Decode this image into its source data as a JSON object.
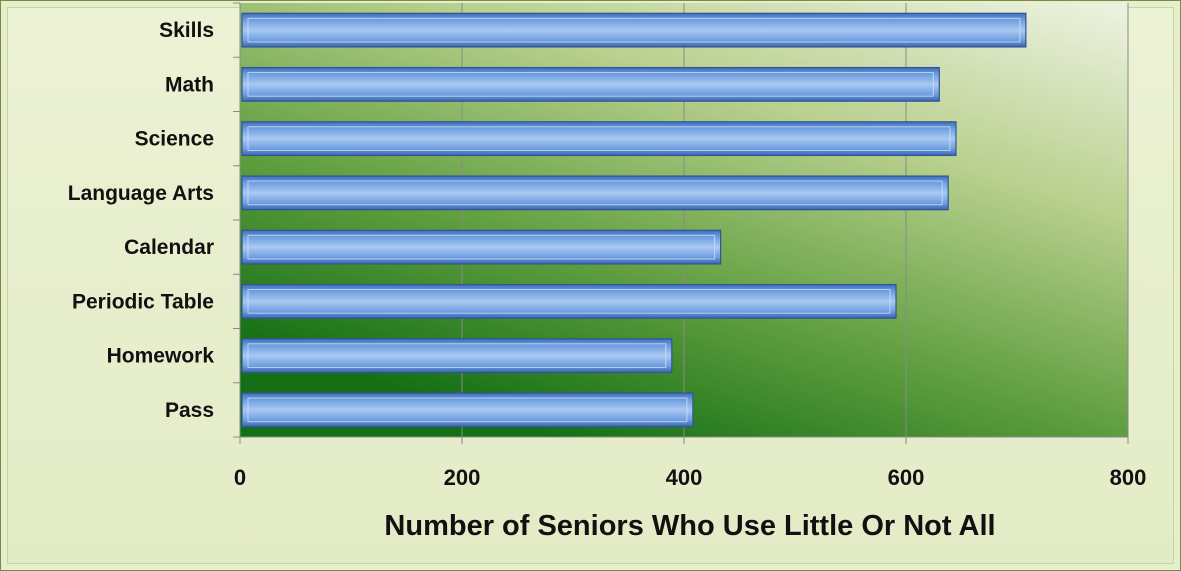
{
  "chart_data": {
    "type": "bar",
    "orientation": "horizontal",
    "categories": [
      "Skills",
      "Math",
      "Science",
      "Language Arts",
      "Calendar",
      "Periodic Table",
      "Homework",
      "Pass"
    ],
    "values": [
      708,
      630,
      645,
      638,
      433,
      591,
      389,
      408
    ],
    "xlabel": "Number of Seniors Who Use Little Or Not All",
    "ylabel": "",
    "xlim": [
      0,
      800
    ],
    "xticks": [
      "0",
      "200",
      "400",
      "600",
      "800"
    ],
    "grid": "vertical",
    "legend": "none",
    "colors": {
      "bar_fill": "#6f9ee0",
      "bar_edge": "#2f5597",
      "plot_bg_top": "#eef3e2",
      "plot_bg_bottom": "#157015",
      "frame_bg": "#e6eecb"
    }
  }
}
